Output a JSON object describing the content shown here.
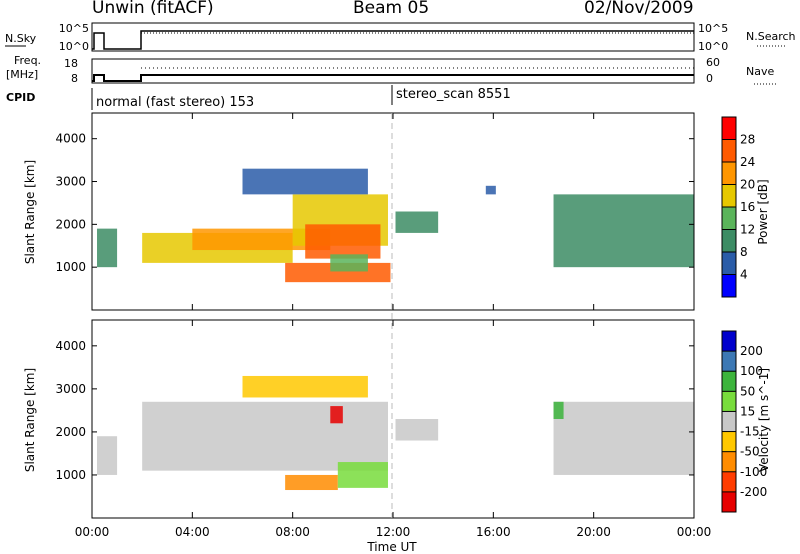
{
  "header": {
    "site": "Unwin (fitACF)",
    "beam": "Beam 05",
    "date": "02/Nov/2009"
  },
  "top_panels": {
    "nsky_label": "N.Sky",
    "nsearch_label": "N.Search",
    "nsky_ticks": [
      "10^5",
      "10^0"
    ],
    "freq_label_1": "Freq.",
    "freq_label_2": "[MHz]",
    "freq_ticks": [
      "18",
      "8"
    ],
    "nave_label": "Nave",
    "nave_ticks": [
      "60",
      "0"
    ],
    "cpid_label": "CPID",
    "cpid_1": "normal (fast stereo) 153",
    "cpid_2": "stereo_scan 8551"
  },
  "chart_data": [
    {
      "type": "heatmap",
      "name": "power",
      "ylabel": "Slant Range [km]",
      "yticks": [
        1000,
        2000,
        3000,
        4000
      ],
      "ylim": [
        0,
        4600
      ],
      "xlim": [
        0,
        24
      ],
      "colorbar_label": "Power [dB]",
      "colorbar_ticks": [
        "4",
        "8",
        "12",
        "16",
        "20",
        "24",
        "28"
      ],
      "colors": [
        "#0000ff",
        "#2a5ca8",
        "#3c8c64",
        "#5ab45a",
        "#e6c800",
        "#ff9600",
        "#ff5a00",
        "#ff0000"
      ],
      "regions": [
        {
          "t0": 0.2,
          "t1": 1.0,
          "r0": 1000,
          "r1": 1900,
          "level": 2
        },
        {
          "t0": 2.0,
          "t1": 8.0,
          "r0": 1100,
          "r1": 1800,
          "level": 4
        },
        {
          "t0": 4.0,
          "t1": 9.5,
          "r0": 1400,
          "r1": 1900,
          "level": 5
        },
        {
          "t0": 8.0,
          "t1": 11.8,
          "r0": 1500,
          "r1": 2700,
          "level": 4
        },
        {
          "t0": 8.5,
          "t1": 11.5,
          "r0": 1200,
          "r1": 2000,
          "level": 6
        },
        {
          "t0": 7.7,
          "t1": 11.9,
          "r0": 650,
          "r1": 1100,
          "level": 6
        },
        {
          "t0": 9.5,
          "t1": 11.0,
          "r0": 900,
          "r1": 1300,
          "level": 3
        },
        {
          "t0": 6.0,
          "t1": 11.0,
          "r0": 2700,
          "r1": 3300,
          "level": 1
        },
        {
          "t0": 12.1,
          "t1": 13.8,
          "r0": 1800,
          "r1": 2300,
          "level": 2
        },
        {
          "t0": 15.7,
          "t1": 16.1,
          "r0": 2700,
          "r1": 2900,
          "level": 1
        },
        {
          "t0": 18.4,
          "t1": 24.0,
          "r0": 1000,
          "r1": 2700,
          "level": 2
        }
      ]
    },
    {
      "type": "heatmap",
      "name": "velocity",
      "ylabel": "Slant Range [km]",
      "yticks": [
        1000,
        2000,
        3000,
        4000
      ],
      "ylim": [
        0,
        4600
      ],
      "xlim": [
        0,
        24
      ],
      "colorbar_label": "Velocity [m s^-1]",
      "colorbar_ticks": [
        "200",
        "100",
        "50",
        "15",
        "-15",
        "-50",
        "-100",
        "-200"
      ],
      "colors": [
        "#0000cc",
        "#3c78b4",
        "#3cb43c",
        "#78dc3c",
        "#c8c8c8",
        "#ffc800",
        "#ff8c00",
        "#ff3c00",
        "#e60000"
      ],
      "regions": [
        {
          "t0": 0.2,
          "t1": 1.0,
          "r0": 1000,
          "r1": 1900,
          "level": 4
        },
        {
          "t0": 2.0,
          "t1": 11.8,
          "r0": 1100,
          "r1": 2700,
          "level": 4
        },
        {
          "t0": 7.7,
          "t1": 9.8,
          "r0": 650,
          "r1": 1000,
          "level": 6
        },
        {
          "t0": 9.8,
          "t1": 11.8,
          "r0": 700,
          "r1": 1300,
          "level": 3
        },
        {
          "t0": 9.5,
          "t1": 10.0,
          "r0": 2200,
          "r1": 2600,
          "level": 8
        },
        {
          "t0": 6.0,
          "t1": 11.0,
          "r0": 2800,
          "r1": 3300,
          "level": 5
        },
        {
          "t0": 12.1,
          "t1": 13.8,
          "r0": 1800,
          "r1": 2300,
          "level": 4
        },
        {
          "t0": 18.4,
          "t1": 24.0,
          "r0": 1000,
          "r1": 2700,
          "level": 4
        },
        {
          "t0": 18.4,
          "t1": 18.8,
          "r0": 2300,
          "r1": 2700,
          "level": 2
        }
      ]
    }
  ],
  "xaxis": {
    "ticks": [
      "00:00",
      "04:00",
      "08:00",
      "12:00",
      "16:00",
      "20:00",
      "00:00"
    ],
    "label": "Time UT"
  }
}
